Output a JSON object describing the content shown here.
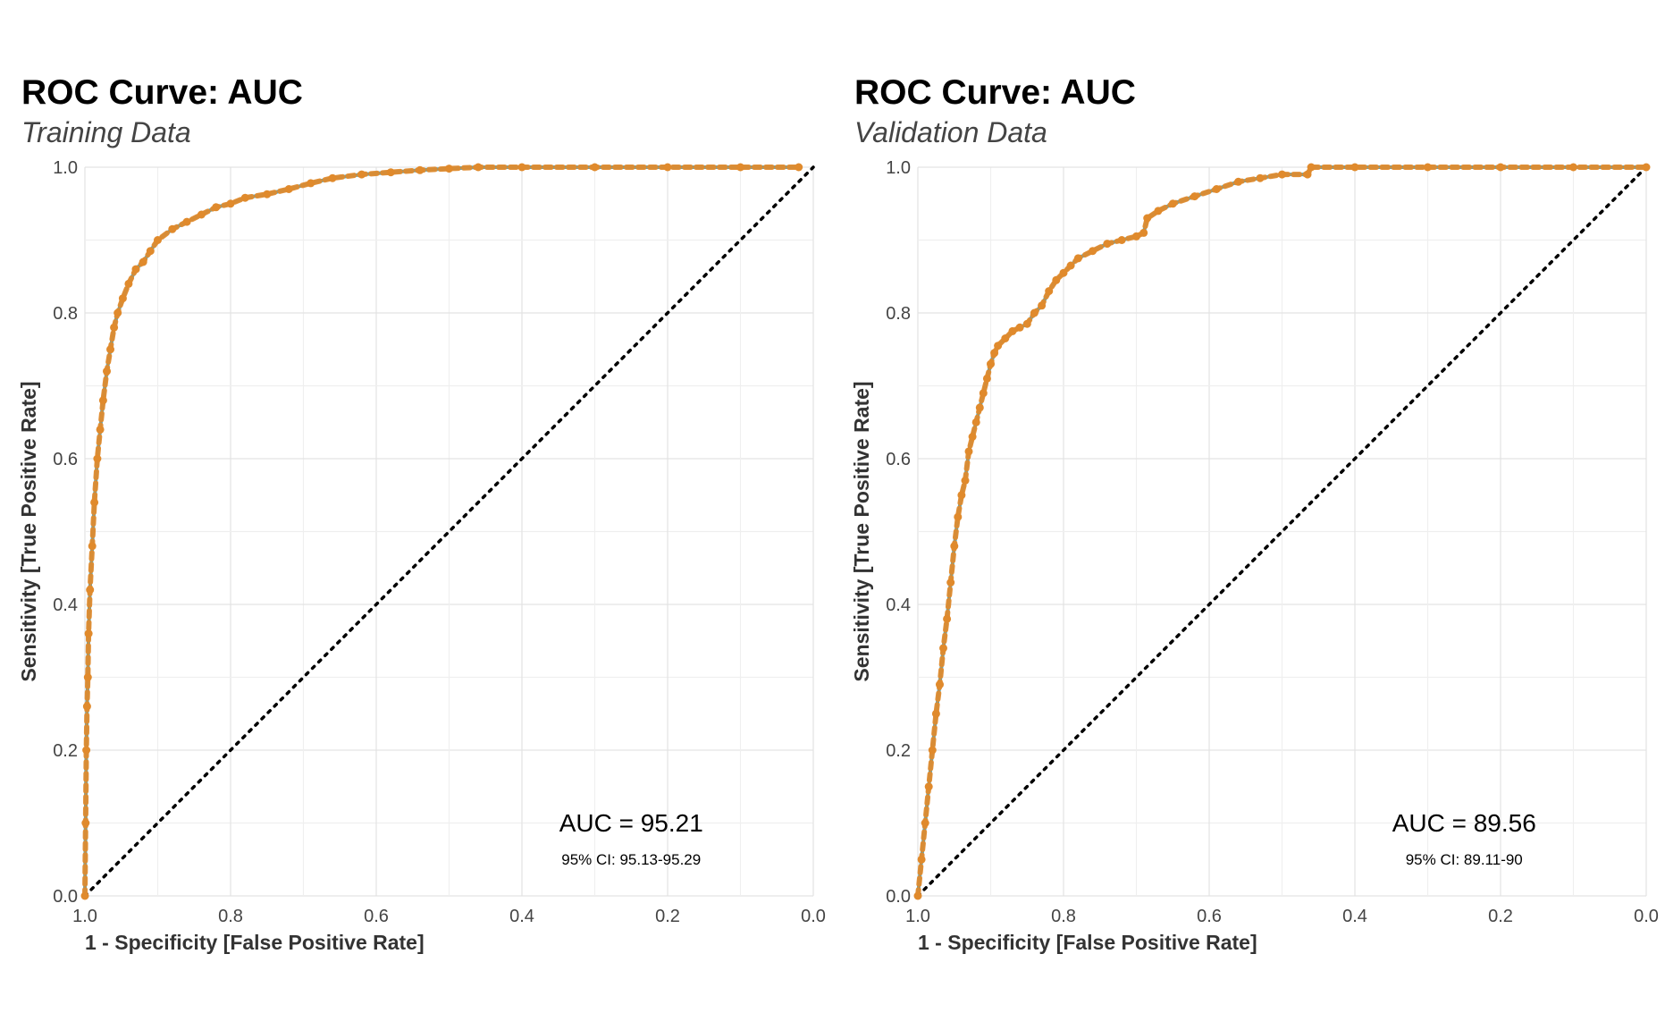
{
  "chart_data": [
    {
      "type": "line",
      "title": "ROC Curve: AUC",
      "subtitle": "Training Data",
      "xlabel": "1 - Specificity [False Positive Rate]",
      "ylabel": "Sensitivity [True Positive Rate]",
      "x_axis_reversed": true,
      "xlim": [
        1.0,
        0.0
      ],
      "ylim": [
        0.0,
        1.0
      ],
      "x_ticks": [
        "1.0",
        "0.8",
        "0.6",
        "0.4",
        "0.2",
        "0.0"
      ],
      "y_ticks": [
        "0.0",
        "0.2",
        "0.4",
        "0.6",
        "0.8",
        "1.0"
      ],
      "grid": true,
      "line_color": "#29abe2",
      "point_color": "#e08a2c",
      "diagonal": "dotted",
      "auc_label": "AUC = 95.21",
      "ci_label": "95% CI: 95.13-95.29",
      "series": [
        {
          "x": [
            1.0,
            0.999,
            0.998,
            0.997,
            0.996,
            0.995,
            0.993,
            0.99,
            0.987,
            0.983,
            0.979,
            0.975,
            0.97,
            0.965,
            0.96,
            0.955,
            0.948,
            0.94,
            0.93,
            0.92,
            0.91,
            0.9,
            0.88,
            0.86,
            0.84,
            0.82,
            0.8,
            0.78,
            0.75,
            0.72,
            0.69,
            0.66,
            0.62,
            0.58,
            0.54,
            0.5,
            0.46,
            0.4,
            0.3,
            0.2,
            0.1,
            0.02
          ],
          "y": [
            0.0,
            0.1,
            0.2,
            0.26,
            0.3,
            0.36,
            0.42,
            0.48,
            0.54,
            0.6,
            0.64,
            0.68,
            0.72,
            0.75,
            0.78,
            0.8,
            0.82,
            0.84,
            0.86,
            0.87,
            0.885,
            0.9,
            0.915,
            0.925,
            0.935,
            0.945,
            0.95,
            0.958,
            0.963,
            0.97,
            0.978,
            0.985,
            0.99,
            0.993,
            0.996,
            0.998,
            1.0,
            1.0,
            1.0,
            1.0,
            1.0,
            1.0
          ]
        }
      ]
    },
    {
      "type": "line",
      "title": "ROC Curve: AUC",
      "subtitle": "Validation Data",
      "xlabel": "1 - Specificity [False Positive Rate]",
      "ylabel": "Sensitivity [True Positive Rate]",
      "x_axis_reversed": true,
      "xlim": [
        1.0,
        0.0
      ],
      "ylim": [
        0.0,
        1.0
      ],
      "x_ticks": [
        "1.0",
        "0.8",
        "0.6",
        "0.4",
        "0.2",
        "0.0"
      ],
      "y_ticks": [
        "0.0",
        "0.2",
        "0.4",
        "0.6",
        "0.8",
        "1.0"
      ],
      "grid": true,
      "line_color": "#29abe2",
      "point_color": "#e08a2c",
      "diagonal": "dotted",
      "auc_label": "AUC = 89.56",
      "ci_label": "95% CI: 89.11-90",
      "series": [
        {
          "x": [
            1.0,
            0.995,
            0.99,
            0.985,
            0.98,
            0.975,
            0.97,
            0.965,
            0.96,
            0.955,
            0.95,
            0.945,
            0.94,
            0.935,
            0.93,
            0.925,
            0.92,
            0.915,
            0.91,
            0.905,
            0.9,
            0.895,
            0.89,
            0.88,
            0.87,
            0.86,
            0.85,
            0.84,
            0.83,
            0.82,
            0.81,
            0.8,
            0.79,
            0.78,
            0.76,
            0.74,
            0.72,
            0.7,
            0.69,
            0.685,
            0.67,
            0.65,
            0.62,
            0.59,
            0.56,
            0.53,
            0.5,
            0.465,
            0.46,
            0.4,
            0.3,
            0.2,
            0.1,
            0.0
          ],
          "y": [
            0.0,
            0.05,
            0.1,
            0.15,
            0.2,
            0.25,
            0.29,
            0.34,
            0.38,
            0.43,
            0.48,
            0.52,
            0.55,
            0.57,
            0.61,
            0.63,
            0.65,
            0.67,
            0.69,
            0.71,
            0.73,
            0.745,
            0.755,
            0.765,
            0.775,
            0.78,
            0.785,
            0.8,
            0.81,
            0.83,
            0.845,
            0.855,
            0.865,
            0.875,
            0.885,
            0.895,
            0.9,
            0.905,
            0.91,
            0.93,
            0.94,
            0.95,
            0.96,
            0.97,
            0.98,
            0.985,
            0.99,
            0.99,
            1.0,
            1.0,
            1.0,
            1.0,
            1.0,
            1.0
          ]
        }
      ]
    }
  ]
}
